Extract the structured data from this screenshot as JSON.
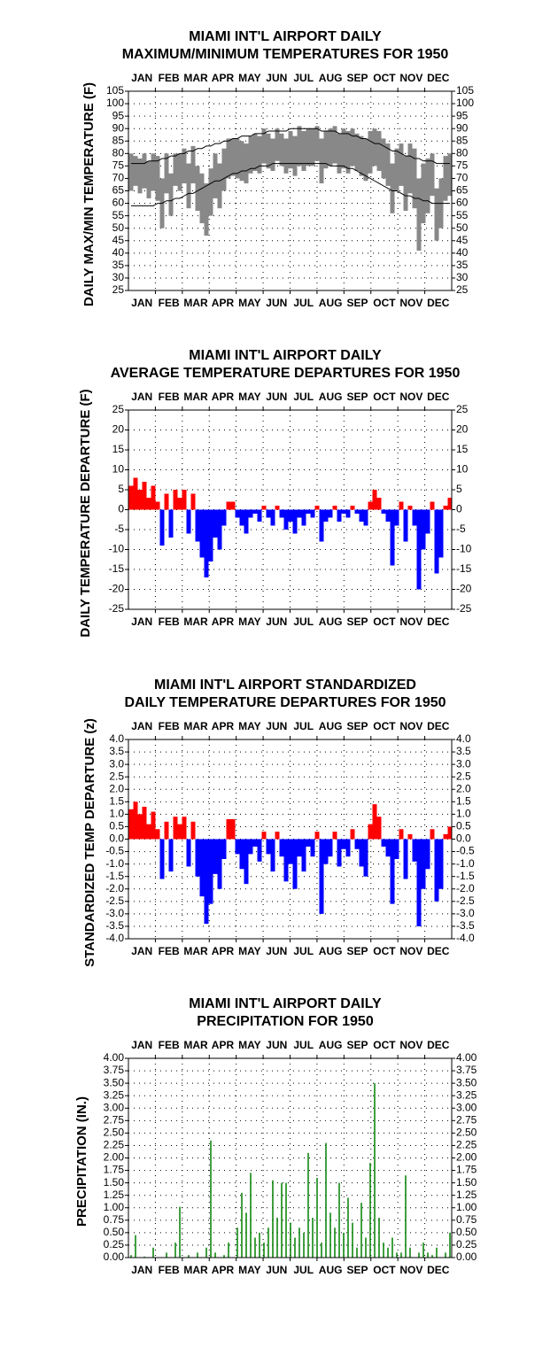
{
  "chart_data": [
    {
      "type": "range",
      "title": [
        "MIAMI INT'L AIRPORT DAILY",
        "MAXIMUM/MINIMUM TEMPERATURES FOR 1950"
      ],
      "ylabel": "DAILY MAX/MIN TEMPERATURE (F)",
      "months": [
        "JAN",
        "FEB",
        "MAR",
        "APR",
        "MAY",
        "JUN",
        "JUL",
        "AUG",
        "SEP",
        "OCT",
        "NOV",
        "DEC"
      ],
      "xlim": [
        0,
        365
      ],
      "x": [
        3,
        8,
        13,
        18,
        23,
        28,
        33,
        38,
        43,
        48,
        53,
        58,
        63,
        68,
        73,
        78,
        83,
        88,
        93,
        98,
        103,
        108,
        113,
        118,
        123,
        128,
        133,
        138,
        143,
        148,
        153,
        158,
        163,
        168,
        173,
        178,
        183,
        188,
        193,
        198,
        203,
        208,
        213,
        218,
        223,
        228,
        233,
        238,
        243,
        248,
        253,
        258,
        263,
        268,
        273,
        278,
        283,
        288,
        293,
        298,
        303,
        308,
        313,
        318,
        323,
        328,
        333,
        338,
        343,
        348,
        353,
        358,
        363
      ],
      "high": [
        80,
        79,
        78,
        80,
        77,
        80,
        79,
        70,
        80,
        72,
        80,
        80,
        82,
        76,
        83,
        75,
        72,
        68,
        74,
        80,
        76,
        82,
        86,
        86,
        86,
        85,
        84,
        87,
        88,
        87,
        90,
        88,
        86,
        90,
        88,
        86,
        89,
        87,
        91,
        89,
        90,
        90,
        91,
        86,
        89,
        90,
        91,
        88,
        90,
        89,
        90,
        88,
        87,
        86,
        89,
        90,
        89,
        86,
        84,
        76,
        82,
        84,
        79,
        84,
        82,
        70,
        76,
        78,
        80,
        66,
        70,
        79,
        80
      ],
      "low": [
        65,
        67,
        64,
        66,
        62,
        65,
        61,
        50,
        64,
        55,
        67,
        65,
        68,
        58,
        68,
        57,
        52,
        47,
        55,
        62,
        58,
        65,
        70,
        71,
        70,
        69,
        68,
        72,
        73,
        72,
        76,
        74,
        73,
        77,
        75,
        72,
        74,
        71,
        75,
        73,
        75,
        75,
        77,
        68,
        74,
        75,
        76,
        72,
        74,
        72,
        75,
        73,
        71,
        69,
        72,
        75,
        73,
        70,
        67,
        56,
        65,
        67,
        57,
        64,
        58,
        41,
        52,
        56,
        63,
        45,
        50,
        61,
        63
      ],
      "normal_high": [
        76,
        76,
        76,
        76,
        77,
        77,
        77,
        78,
        78,
        79,
        79,
        80,
        80,
        81,
        81,
        82,
        82,
        83,
        83,
        84,
        84,
        85,
        85,
        86,
        86,
        87,
        87,
        87,
        88,
        88,
        88,
        89,
        89,
        89,
        89,
        89,
        90,
        90,
        90,
        90,
        90,
        90,
        90,
        89,
        89,
        89,
        89,
        88,
        88,
        88,
        87,
        87,
        86,
        86,
        85,
        84,
        84,
        83,
        82,
        81,
        81,
        80,
        79,
        79,
        78,
        78,
        77,
        77,
        77,
        76,
        76,
        76,
        76
      ],
      "normal_low": [
        59,
        59,
        59,
        59,
        59,
        59,
        60,
        60,
        61,
        61,
        62,
        62,
        63,
        64,
        64,
        65,
        66,
        67,
        68,
        69,
        69,
        70,
        71,
        72,
        72,
        73,
        73,
        74,
        74,
        75,
        75,
        75,
        76,
        76,
        76,
        76,
        76,
        76,
        76,
        76,
        76,
        76,
        76,
        76,
        76,
        75,
        75,
        75,
        75,
        74,
        74,
        73,
        72,
        71,
        70,
        69,
        68,
        67,
        66,
        65,
        65,
        64,
        63,
        63,
        62,
        62,
        61,
        61,
        60,
        60,
        60,
        60,
        60
      ],
      "color": "#888888",
      "normal_color": "#000000",
      "ylim": [
        25,
        105
      ],
      "yticks": [
        25,
        30,
        35,
        40,
        45,
        50,
        55,
        60,
        65,
        70,
        75,
        80,
        85,
        90,
        95,
        100,
        105
      ],
      "grid": true
    },
    {
      "type": "departure",
      "title": [
        "MIAMI INT'L AIRPORT DAILY",
        "AVERAGE TEMPERATURE DEPARTURES FOR 1950"
      ],
      "ylabel": "DAILY TEMPERATURE DEPARTURE (F)",
      "months": [
        "JAN",
        "FEB",
        "MAR",
        "APR",
        "MAY",
        "JUN",
        "JUL",
        "AUG",
        "SEP",
        "OCT",
        "NOV",
        "DEC"
      ],
      "xlim": [
        0,
        365
      ],
      "x": [
        3,
        8,
        13,
        18,
        23,
        28,
        33,
        38,
        43,
        48,
        53,
        58,
        63,
        68,
        73,
        78,
        83,
        88,
        93,
        98,
        103,
        108,
        113,
        118,
        123,
        128,
        133,
        138,
        143,
        148,
        153,
        158,
        163,
        168,
        173,
        178,
        183,
        188,
        193,
        198,
        203,
        208,
        213,
        218,
        223,
        228,
        233,
        238,
        243,
        248,
        253,
        258,
        263,
        268,
        273,
        278,
        283,
        288,
        293,
        298,
        303,
        308,
        313,
        318,
        323,
        328,
        333,
        338,
        343,
        348,
        353,
        358,
        363
      ],
      "values": [
        6,
        8,
        5,
        7,
        3,
        6,
        2,
        -9,
        4,
        -7,
        5,
        3,
        5,
        -6,
        4,
        -8,
        -12,
        -17,
        -13,
        -7,
        -10,
        -4,
        2,
        2,
        -2,
        -4,
        -6,
        -2,
        -1,
        -3,
        1,
        -2,
        -4,
        1,
        -2,
        -5,
        -3,
        -6,
        -2,
        -4,
        -1,
        -2,
        1,
        -8,
        -3,
        -2,
        1,
        -3,
        -1,
        -2,
        1,
        -1,
        -3,
        -4,
        2,
        5,
        3,
        -1,
        -3,
        -14,
        -4,
        2,
        -8,
        1,
        -4,
        -20,
        -10,
        -6,
        2,
        -16,
        -12,
        1,
        3
      ],
      "pos_color": "#ff0000",
      "neg_color": "#0000ff",
      "ylim": [
        -25,
        25
      ],
      "yticks": [
        -25,
        -20,
        -15,
        -10,
        -5,
        0,
        5,
        10,
        15,
        20,
        25
      ],
      "grid": true
    },
    {
      "type": "departure",
      "title": [
        "MIAMI INT'L AIRPORT STANDARDIZED",
        "DAILY TEMPERATURE DEPARTURES FOR 1950"
      ],
      "ylabel": "STANDARDIZED TEMP DEPARTURE (z)",
      "months": [
        "JAN",
        "FEB",
        "MAR",
        "APR",
        "MAY",
        "JUN",
        "JUL",
        "AUG",
        "SEP",
        "OCT",
        "NOV",
        "DEC"
      ],
      "xlim": [
        0,
        365
      ],
      "x": [
        3,
        8,
        13,
        18,
        23,
        28,
        33,
        38,
        43,
        48,
        53,
        58,
        63,
        68,
        73,
        78,
        83,
        88,
        93,
        98,
        103,
        108,
        113,
        118,
        123,
        128,
        133,
        138,
        143,
        148,
        153,
        158,
        163,
        168,
        173,
        178,
        183,
        188,
        193,
        198,
        203,
        208,
        213,
        218,
        223,
        228,
        233,
        238,
        243,
        248,
        253,
        258,
        263,
        268,
        273,
        278,
        283,
        288,
        293,
        298,
        303,
        308,
        313,
        318,
        323,
        328,
        333,
        338,
        343,
        348,
        353,
        358,
        363
      ],
      "values": [
        1.2,
        1.5,
        1.0,
        1.3,
        0.6,
        1.1,
        0.4,
        -1.6,
        0.7,
        -1.3,
        0.9,
        0.6,
        0.9,
        -1.1,
        0.7,
        -1.5,
        -2.3,
        -3.4,
        -2.6,
        -1.4,
        -2.0,
        -0.8,
        0.8,
        0.8,
        -0.6,
        -1.2,
        -1.8,
        -0.6,
        -0.3,
        -0.9,
        0.3,
        -0.6,
        -1.3,
        0.3,
        -0.7,
        -1.7,
        -1.0,
        -2.0,
        -0.7,
        -1.3,
        -0.3,
        -0.7,
        0.3,
        -3.0,
        -1.0,
        -0.7,
        0.3,
        -1.1,
        -0.4,
        -0.7,
        0.4,
        -0.4,
        -1.1,
        -1.5,
        0.6,
        1.4,
        0.9,
        -0.3,
        -0.7,
        -2.6,
        -0.8,
        0.4,
        -1.6,
        0.2,
        -0.9,
        -3.5,
        -2.0,
        -1.2,
        0.4,
        -2.5,
        -2.0,
        0.2,
        0.5
      ],
      "pos_color": "#ff0000",
      "neg_color": "#0000ff",
      "ylim": [
        -4,
        4
      ],
      "yticks": [
        {
          "value": -4,
          "label": "-4.0"
        },
        -3.5,
        {
          "value": -3,
          "label": "-3.0"
        },
        -2.5,
        {
          "value": -2,
          "label": "-2.0"
        },
        -1.5,
        {
          "value": -1,
          "label": "-1.0"
        },
        -0.5,
        {
          "value": 0,
          "label": "0.0"
        },
        0.5,
        {
          "value": 1,
          "label": "1.0"
        },
        1.5,
        {
          "value": 2,
          "label": "2.0"
        },
        2.5,
        {
          "value": 3,
          "label": "3.0"
        },
        3.5,
        {
          "value": 4,
          "label": "4.0"
        }
      ],
      "grid": true
    },
    {
      "type": "bar",
      "title": [
        "MIAMI INT'L AIRPORT DAILY",
        "PRECIPITATION FOR 1950"
      ],
      "ylabel": "PRECIPITATION (IN.)",
      "months": [
        "JAN",
        "FEB",
        "MAR",
        "APR",
        "MAY",
        "JUN",
        "JUL",
        "AUG",
        "SEP",
        "OCT",
        "NOV",
        "DEC"
      ],
      "xlim": [
        0,
        365
      ],
      "x": [
        3,
        8,
        13,
        18,
        23,
        28,
        33,
        38,
        43,
        48,
        53,
        58,
        63,
        68,
        73,
        78,
        83,
        88,
        93,
        98,
        103,
        108,
        113,
        118,
        123,
        128,
        133,
        138,
        143,
        148,
        153,
        158,
        163,
        168,
        173,
        178,
        183,
        188,
        193,
        198,
        203,
        208,
        213,
        218,
        223,
        228,
        233,
        238,
        243,
        248,
        253,
        258,
        263,
        268,
        273,
        278,
        283,
        288,
        293,
        298,
        303,
        308,
        313,
        318,
        323,
        328,
        333,
        338,
        343,
        348,
        353,
        358,
        363
      ],
      "values": [
        0.05,
        0.45,
        0,
        0.02,
        0,
        0.2,
        0,
        0,
        0.1,
        0,
        0.3,
        1.02,
        0,
        0.05,
        0,
        0.1,
        0,
        0.2,
        2.35,
        0.1,
        0,
        0.05,
        0.3,
        0,
        0.6,
        1.3,
        0.9,
        1.7,
        0.4,
        0.5,
        0.3,
        0.6,
        1.55,
        0.8,
        1.5,
        1.5,
        0.7,
        0.4,
        0.6,
        0.5,
        2.1,
        0.8,
        1.6,
        0.3,
        2.3,
        0.9,
        0.6,
        1.5,
        0.5,
        1.2,
        0.7,
        0.2,
        1.1,
        0.4,
        1.9,
        3.5,
        0.8,
        0.3,
        0.2,
        0.4,
        0.1,
        0.1,
        1.65,
        0.2,
        0,
        0.1,
        0.3,
        0.1,
        0.05,
        0.2,
        0,
        0.1,
        0.5
      ],
      "color": "#008000",
      "ylim": [
        0,
        4
      ],
      "yticks": [
        {
          "value": 0,
          "label": "0.00"
        },
        0.25,
        {
          "value": 0.5,
          "label": "0.50"
        },
        0.75,
        {
          "value": 1,
          "label": "1.00"
        },
        1.25,
        {
          "value": 1.5,
          "label": "1.50"
        },
        1.75,
        {
          "value": 2,
          "label": "2.00"
        },
        2.25,
        {
          "value": 2.5,
          "label": "2.50"
        },
        2.75,
        {
          "value": 3,
          "label": "3.00"
        },
        3.25,
        {
          "value": 3.5,
          "label": "3.50"
        },
        3.75,
        {
          "value": 4,
          "label": "4.00"
        }
      ],
      "grid": true
    }
  ]
}
